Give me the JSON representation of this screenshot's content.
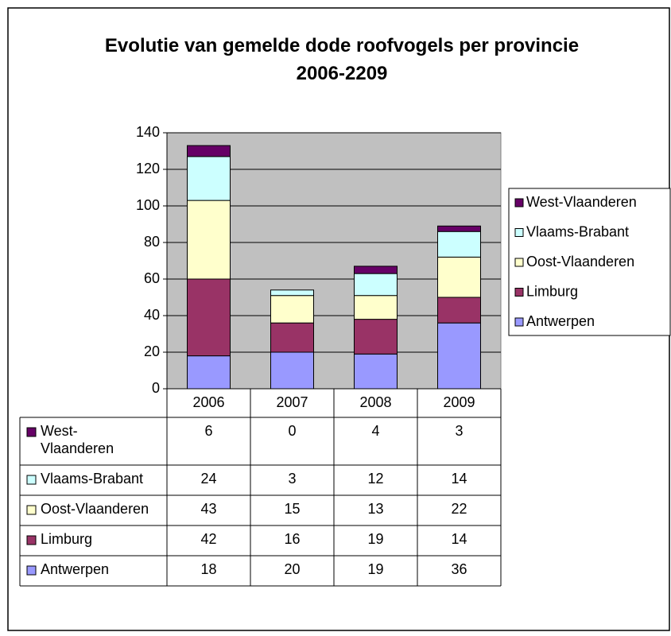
{
  "chart_data": {
    "type": "stacked_bar",
    "title": "Evolutie van gemelde dode roofvogels per provincie 2006-2209",
    "categories": [
      "2006",
      "2007",
      "2008",
      "2009"
    ],
    "series": [
      {
        "name": "Antwerpen",
        "color": "#9999ff",
        "values": [
          18,
          20,
          19,
          36
        ]
      },
      {
        "name": "Limburg",
        "color": "#993366",
        "values": [
          42,
          16,
          19,
          14
        ]
      },
      {
        "name": "Oost-Vlaanderen",
        "color": "#ffffcc",
        "values": [
          43,
          15,
          13,
          22
        ]
      },
      {
        "name": "Vlaams-Brabant",
        "color": "#ccffff",
        "values": [
          24,
          3,
          12,
          14
        ]
      },
      {
        "name": "West-Vlaanderen",
        "color": "#660066",
        "values": [
          6,
          0,
          4,
          3
        ]
      }
    ],
    "ylim": [
      0,
      140
    ],
    "yticks": [
      0,
      20,
      40,
      60,
      80,
      100,
      120,
      140
    ],
    "grid": true,
    "legend": "right",
    "data_table": true
  }
}
